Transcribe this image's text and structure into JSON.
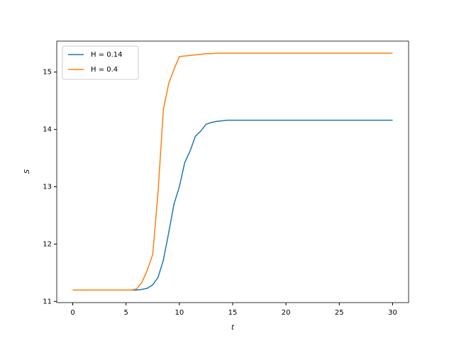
{
  "chart_data": {
    "type": "line",
    "xlabel": "t",
    "ylabel": "S",
    "x": [
      0,
      0.5,
      1,
      1.5,
      2,
      2.5,
      3,
      3.5,
      4,
      4.5,
      5,
      5.5,
      6,
      6.5,
      7,
      7.5,
      8,
      8.5,
      9,
      9.5,
      10,
      10.5,
      11,
      11.5,
      12,
      12.5,
      13,
      13.5,
      14,
      14.5,
      15,
      15.5,
      16,
      16.5,
      17,
      17.5,
      18,
      18.5,
      19,
      19.5,
      20,
      20.5,
      21,
      21.5,
      22,
      22.5,
      23,
      23.5,
      24,
      24.5,
      25,
      25.5,
      26,
      26.5,
      27,
      27.5,
      28,
      28.5,
      29,
      29.5,
      30
    ],
    "series": [
      {
        "name": "H = 0.14",
        "color": "#1f77b4",
        "values": [
          11.2,
          11.2,
          11.2,
          11.2,
          11.2,
          11.2,
          11.2,
          11.2,
          11.2,
          11.2,
          11.2,
          11.2,
          11.2,
          11.21,
          11.23,
          11.29,
          11.42,
          11.72,
          12.2,
          12.7,
          13.0,
          13.42,
          13.62,
          13.88,
          13.97,
          14.09,
          14.12,
          14.14,
          14.15,
          14.16,
          14.16,
          14.16,
          14.16,
          14.16,
          14.16,
          14.16,
          14.16,
          14.16,
          14.16,
          14.16,
          14.16,
          14.16,
          14.16,
          14.16,
          14.16,
          14.16,
          14.16,
          14.16,
          14.16,
          14.16,
          14.16,
          14.16,
          14.16,
          14.16,
          14.16,
          14.16,
          14.16,
          14.16,
          14.16,
          14.16,
          14.16
        ]
      },
      {
        "name": "H = 0.4",
        "color": "#ff7f0e",
        "values": [
          11.2,
          11.2,
          11.2,
          11.2,
          11.2,
          11.2,
          11.2,
          11.2,
          11.2,
          11.2,
          11.2,
          11.2,
          11.22,
          11.34,
          11.55,
          11.82,
          12.9,
          14.35,
          14.8,
          15.05,
          15.27,
          15.28,
          15.29,
          15.3,
          15.31,
          15.32,
          15.32,
          15.33,
          15.33,
          15.33,
          15.33,
          15.33,
          15.33,
          15.33,
          15.33,
          15.33,
          15.33,
          15.33,
          15.33,
          15.33,
          15.33,
          15.33,
          15.33,
          15.33,
          15.33,
          15.33,
          15.33,
          15.33,
          15.33,
          15.33,
          15.33,
          15.33,
          15.33,
          15.33,
          15.33,
          15.33,
          15.33,
          15.33,
          15.33,
          15.33,
          15.33
        ]
      }
    ],
    "xlim": [
      -1.5,
      31.5
    ],
    "ylim": [
      10.98,
      15.54
    ],
    "xticks": [
      0,
      5,
      10,
      15,
      20,
      25,
      30
    ],
    "yticks": [
      11,
      12,
      13,
      14,
      15
    ],
    "grid": false,
    "legend": "upper left"
  }
}
